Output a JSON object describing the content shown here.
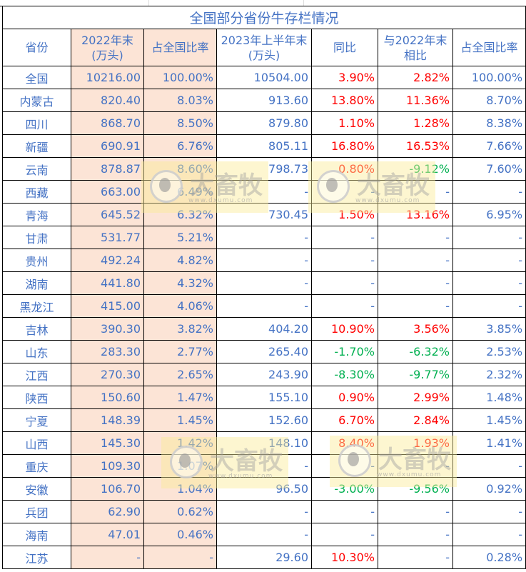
{
  "title": "全国部分省份牛存栏情况",
  "headers": [
    "省份",
    "2022年末(万头)",
    "占全国比率",
    "2023年上半年末(万头)",
    "同比",
    "与2022年末相比",
    "占全国比率"
  ],
  "rows": [
    {
      "province": "全国",
      "y2022": "10216.00",
      "share2022": "100.00%",
      "h2023": "10504.00",
      "yoy": "3.90%",
      "vs2022": "2.82%",
      "share2023": "100.00%"
    },
    {
      "province": "内蒙古",
      "y2022": "820.40",
      "share2022": "8.03%",
      "h2023": "913.60",
      "yoy": "13.80%",
      "vs2022": "11.36%",
      "share2023": "8.70%"
    },
    {
      "province": "四川",
      "y2022": "868.70",
      "share2022": "8.50%",
      "h2023": "879.80",
      "yoy": "1.10%",
      "vs2022": "1.28%",
      "share2023": "8.38%"
    },
    {
      "province": "新疆",
      "y2022": "690.91",
      "share2022": "6.76%",
      "h2023": "805.11",
      "yoy": "16.80%",
      "vs2022": "16.53%",
      "share2023": "7.66%"
    },
    {
      "province": "云南",
      "y2022": "878.87",
      "share2022": "8.60%",
      "h2023": "798.73",
      "yoy": "0.80%",
      "vs2022": "-9.12%",
      "share2023": "7.60%"
    },
    {
      "province": "西藏",
      "y2022": "663.00",
      "share2022": "6.49%",
      "h2023": "-",
      "yoy": "-",
      "vs2022": "-",
      "share2023": "-"
    },
    {
      "province": "青海",
      "y2022": "645.52",
      "share2022": "6.32%",
      "h2023": "730.45",
      "yoy": "1.50%",
      "vs2022": "13.16%",
      "share2023": "6.95%"
    },
    {
      "province": "甘肃",
      "y2022": "531.77",
      "share2022": "5.21%",
      "h2023": "-",
      "yoy": "-",
      "vs2022": "-",
      "share2023": "-"
    },
    {
      "province": "贵州",
      "y2022": "492.24",
      "share2022": "4.82%",
      "h2023": "-",
      "yoy": "-",
      "vs2022": "-",
      "share2023": "-"
    },
    {
      "province": "湖南",
      "y2022": "441.80",
      "share2022": "4.32%",
      "h2023": "-",
      "yoy": "-",
      "vs2022": "-",
      "share2023": "-"
    },
    {
      "province": "黑龙江",
      "y2022": "415.00",
      "share2022": "4.06%",
      "h2023": "-",
      "yoy": "-",
      "vs2022": "-",
      "share2023": "-"
    },
    {
      "province": "吉林",
      "y2022": "390.30",
      "share2022": "3.82%",
      "h2023": "404.20",
      "yoy": "10.90%",
      "vs2022": "3.56%",
      "share2023": "3.85%"
    },
    {
      "province": "山东",
      "y2022": "283.30",
      "share2022": "2.77%",
      "h2023": "265.40",
      "yoy": "-1.70%",
      "vs2022": "-6.32%",
      "share2023": "2.53%"
    },
    {
      "province": "江西",
      "y2022": "270.30",
      "share2022": "2.65%",
      "h2023": "243.90",
      "yoy": "-8.30%",
      "vs2022": "-9.77%",
      "share2023": "2.32%"
    },
    {
      "province": "陕西",
      "y2022": "150.60",
      "share2022": "1.47%",
      "h2023": "155.10",
      "yoy": "0.90%",
      "vs2022": "2.99%",
      "share2023": "1.48%"
    },
    {
      "province": "宁夏",
      "y2022": "148.39",
      "share2022": "1.45%",
      "h2023": "152.60",
      "yoy": "6.70%",
      "vs2022": "2.84%",
      "share2023": "1.45%"
    },
    {
      "province": "山西",
      "y2022": "145.30",
      "share2022": "1.42%",
      "h2023": "148.10",
      "yoy": "8.40%",
      "vs2022": "1.93%",
      "share2023": "1.41%"
    },
    {
      "province": "重庆",
      "y2022": "109.30",
      "share2022": "1.07%",
      "h2023": "-",
      "yoy": "-",
      "vs2022": "-",
      "share2023": "-"
    },
    {
      "province": "安徽",
      "y2022": "106.70",
      "share2022": "1.04%",
      "h2023": "96.50",
      "yoy": "-3.00%",
      "vs2022": "-9.56%",
      "share2023": "0.92%"
    },
    {
      "province": "兵团",
      "y2022": "62.90",
      "share2022": "0.62%",
      "h2023": "-",
      "yoy": "-",
      "vs2022": "-",
      "share2023": "-"
    },
    {
      "province": "海南",
      "y2022": "47.01",
      "share2022": "0.46%",
      "h2023": "-",
      "yoy": "-",
      "vs2022": "-",
      "share2023": "-"
    },
    {
      "province": "江苏",
      "y2022": "-",
      "share2022": "-",
      "h2023": "29.60",
      "yoy": "10.30%",
      "vs2022": "-",
      "share2023": "0.28%"
    }
  ],
  "watermark": {
    "brand": "大畜牧",
    "url": "www.dxumu.com"
  },
  "colors": {
    "text": "#4472c4",
    "positive": "#ff0000",
    "negative": "#00b050",
    "highlight_fill": "#fce4d6"
  }
}
